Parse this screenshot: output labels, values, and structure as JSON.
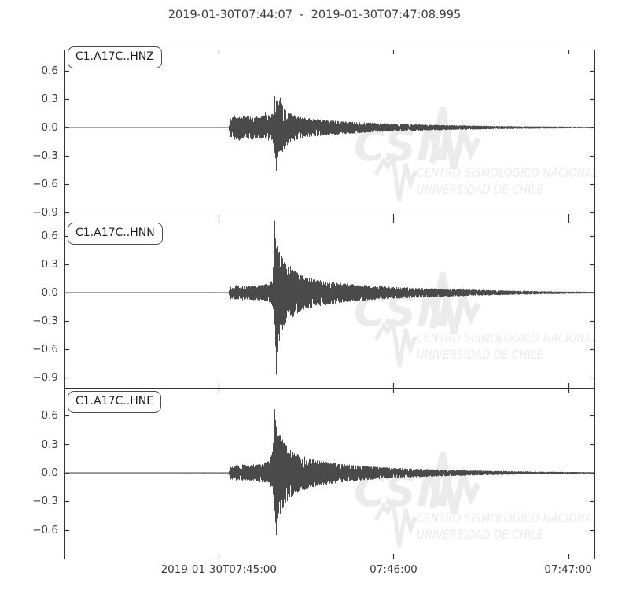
{
  "title": "2019-01-30T07:44:07  -  2019-01-30T07:47:08.995",
  "watermark": {
    "acronym": "CSN",
    "line1": "CENTRO SISMOLÓGICO NACIONAL",
    "line2": "UNIVERSIDAD DE CHILE",
    "color": "#ebebeb"
  },
  "colors": {
    "trace": "#4a4a4a",
    "frame": "#333333",
    "tick": "#333333",
    "text": "#3a3a3a"
  },
  "chart_data": {
    "type": "line",
    "kind": "seismogram-3-panel",
    "title": "2019-01-30T07:44:07  -  2019-01-30T07:47:08.995",
    "time_start": "2019-01-30T07:44:07",
    "time_end": "2019-01-30T07:47:08.995",
    "duration_s": 181.995,
    "event_onset_offset_s": 57,
    "main_spike_offset_s": 72.3,
    "xticks": [
      {
        "offset_s": 53,
        "label": "2019-01-30T07:45:00"
      },
      {
        "offset_s": 113,
        "label": "07:46:00"
      },
      {
        "offset_s": 173,
        "label": "07:47:00"
      }
    ],
    "envelope_format": "[time_offset_s, positive_amplitude, negative_amplitude]",
    "panels": [
      {
        "label": "C1.A17C..HNZ",
        "ylim": [
          -0.965,
          0.823
        ],
        "yticks": [
          0.6,
          0.3,
          0.0,
          -0.3,
          -0.6,
          -0.9
        ],
        "yticklabels": [
          "0.6",
          "0.3",
          "0.0",
          "−0.3",
          "−0.6",
          "−0.9"
        ],
        "peak_positive": 0.35,
        "peak_negative": -0.47,
        "envelope": [
          [
            0,
            0.004,
            0.004
          ],
          [
            56.3,
            0.005,
            0.005
          ],
          [
            57,
            0.09,
            0.1
          ],
          [
            58.5,
            0.13,
            0.13
          ],
          [
            60,
            0.11,
            0.14
          ],
          [
            61.5,
            0.12,
            0.11
          ],
          [
            63,
            0.14,
            0.12
          ],
          [
            64.5,
            0.1,
            0.13
          ],
          [
            66,
            0.12,
            0.11
          ],
          [
            67.5,
            0.11,
            0.12
          ],
          [
            69,
            0.16,
            0.12
          ],
          [
            70,
            0.13,
            0.14
          ],
          [
            71,
            0.12,
            0.12
          ],
          [
            71.8,
            0.22,
            0.18
          ],
          [
            72.3,
            0.35,
            0.28
          ],
          [
            72.8,
            0.28,
            0.47
          ],
          [
            73.4,
            0.3,
            0.3
          ],
          [
            74.2,
            0.32,
            0.24
          ],
          [
            75,
            0.22,
            0.26
          ],
          [
            76,
            0.18,
            0.2
          ],
          [
            77.5,
            0.15,
            0.16
          ],
          [
            79,
            0.13,
            0.14
          ],
          [
            81,
            0.11,
            0.12
          ],
          [
            84,
            0.1,
            0.1
          ],
          [
            88,
            0.085,
            0.09
          ],
          [
            93,
            0.07,
            0.075
          ],
          [
            99,
            0.06,
            0.065
          ],
          [
            106,
            0.05,
            0.05
          ],
          [
            114,
            0.04,
            0.042
          ],
          [
            123,
            0.032,
            0.034
          ],
          [
            133,
            0.025,
            0.026
          ],
          [
            145,
            0.018,
            0.019
          ],
          [
            158,
            0.013,
            0.014
          ],
          [
            170,
            0.01,
            0.01
          ],
          [
            182,
            0.008,
            0.008
          ]
        ]
      },
      {
        "label": "C1.A17C..HNN",
        "ylim": [
          -1.006,
          0.782
        ],
        "yticks": [
          0.6,
          0.3,
          0.0,
          -0.3,
          -0.6,
          -0.9
        ],
        "yticklabels": [
          "0.6",
          "0.3",
          "0.0",
          "−0.3",
          "−0.6",
          "−0.9"
        ],
        "peak_positive": 0.78,
        "peak_negative": -0.93,
        "envelope": [
          [
            0,
            0.004,
            0.004
          ],
          [
            56.3,
            0.005,
            0.005
          ],
          [
            57,
            0.06,
            0.07
          ],
          [
            59,
            0.08,
            0.07
          ],
          [
            61,
            0.07,
            0.08
          ],
          [
            63,
            0.08,
            0.07
          ],
          [
            65,
            0.07,
            0.08
          ],
          [
            67,
            0.08,
            0.08
          ],
          [
            69,
            0.09,
            0.09
          ],
          [
            70.5,
            0.1,
            0.11
          ],
          [
            71.6,
            0.18,
            0.15
          ],
          [
            72.2,
            0.78,
            0.3
          ],
          [
            72.7,
            0.45,
            0.93
          ],
          [
            73.2,
            0.6,
            0.5
          ],
          [
            73.7,
            0.42,
            0.55
          ],
          [
            74.3,
            0.48,
            0.38
          ],
          [
            75,
            0.35,
            0.4
          ],
          [
            76,
            0.3,
            0.32
          ],
          [
            77,
            0.32,
            0.26
          ],
          [
            78.5,
            0.24,
            0.26
          ],
          [
            80,
            0.21,
            0.22
          ],
          [
            82,
            0.18,
            0.19
          ],
          [
            85,
            0.15,
            0.16
          ],
          [
            88,
            0.13,
            0.14
          ],
          [
            92,
            0.11,
            0.12
          ],
          [
            97,
            0.095,
            0.1
          ],
          [
            103,
            0.08,
            0.085
          ],
          [
            110,
            0.065,
            0.07
          ],
          [
            118,
            0.055,
            0.058
          ],
          [
            127,
            0.045,
            0.048
          ],
          [
            137,
            0.035,
            0.038
          ],
          [
            148,
            0.025,
            0.027
          ],
          [
            160,
            0.018,
            0.019
          ],
          [
            171,
            0.012,
            0.013
          ],
          [
            182,
            0.009,
            0.009
          ]
        ]
      },
      {
        "label": "C1.A17C..HNE",
        "ylim": [
          -0.9,
          0.893
        ],
        "yticks": [
          0.6,
          0.3,
          0.0,
          -0.3,
          -0.6
        ],
        "yticklabels": [
          "0.6",
          "0.3",
          "0.0",
          "−0.3",
          "−0.6"
        ],
        "peak_positive": 0.68,
        "peak_negative": -0.68,
        "envelope": [
          [
            0,
            0.004,
            0.004
          ],
          [
            56.3,
            0.005,
            0.005
          ],
          [
            57,
            0.06,
            0.07
          ],
          [
            59,
            0.08,
            0.08
          ],
          [
            61,
            0.09,
            0.08
          ],
          [
            63,
            0.08,
            0.09
          ],
          [
            65,
            0.09,
            0.08
          ],
          [
            67,
            0.09,
            0.1
          ],
          [
            69,
            0.11,
            0.1
          ],
          [
            70.5,
            0.13,
            0.12
          ],
          [
            71.6,
            0.25,
            0.2
          ],
          [
            72.2,
            0.68,
            0.38
          ],
          [
            72.7,
            0.48,
            0.68
          ],
          [
            73.3,
            0.5,
            0.45
          ],
          [
            74,
            0.4,
            0.44
          ],
          [
            74.8,
            0.36,
            0.38
          ],
          [
            75.8,
            0.3,
            0.33
          ],
          [
            77,
            0.26,
            0.28
          ],
          [
            78.5,
            0.22,
            0.24
          ],
          [
            80,
            0.2,
            0.21
          ],
          [
            82.5,
            0.17,
            0.18
          ],
          [
            85.5,
            0.14,
            0.15
          ],
          [
            89,
            0.12,
            0.13
          ],
          [
            93,
            0.1,
            0.11
          ],
          [
            98,
            0.085,
            0.09
          ],
          [
            104,
            0.07,
            0.075
          ],
          [
            111,
            0.055,
            0.06
          ],
          [
            119,
            0.045,
            0.048
          ],
          [
            128,
            0.035,
            0.038
          ],
          [
            138,
            0.027,
            0.029
          ],
          [
            150,
            0.019,
            0.021
          ],
          [
            162,
            0.013,
            0.014
          ],
          [
            172,
            0.01,
            0.01
          ],
          [
            182,
            0.007,
            0.007
          ]
        ]
      }
    ]
  }
}
